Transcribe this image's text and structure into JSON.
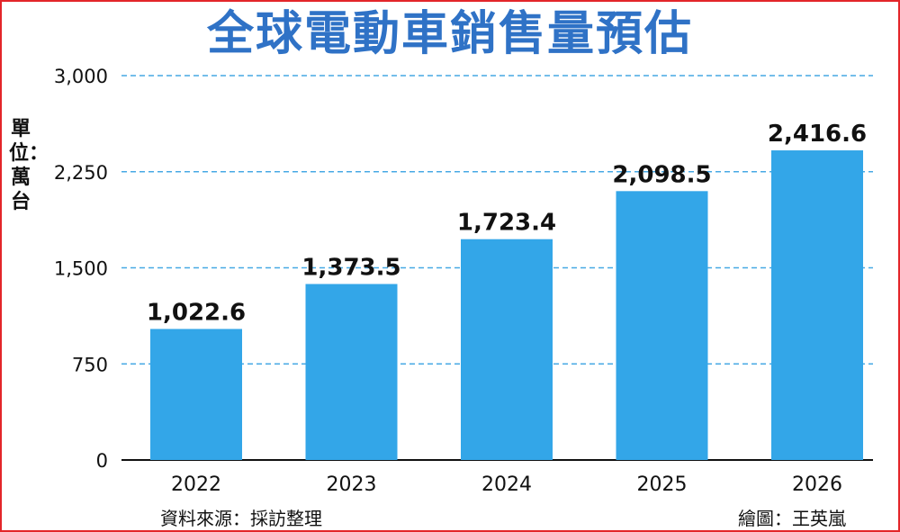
{
  "chart_data": {
    "type": "bar",
    "title": "全球電動車銷售量預估",
    "ylabel": "單位：萬台",
    "categories": [
      "2022",
      "2023",
      "2024",
      "2025",
      "2026"
    ],
    "values": [
      1022.6,
      1373.5,
      1723.4,
      2098.5,
      2416.6
    ],
    "data_labels": [
      "1,022.6",
      "1,373.5",
      "1,723.4",
      "2,098.5",
      "2,416.6"
    ],
    "yticks": [
      0,
      750,
      1500,
      2250,
      3000
    ],
    "ytick_labels": [
      "0",
      "750",
      "1,500",
      "2,250",
      "3,000"
    ],
    "ylim": [
      0,
      3000
    ],
    "grid": true,
    "bar_color": "#33a6e8",
    "grid_color": "#47a9e4"
  },
  "footer": {
    "source": "資料來源：採訪整理",
    "credit": "繪圖：王英嵐"
  }
}
